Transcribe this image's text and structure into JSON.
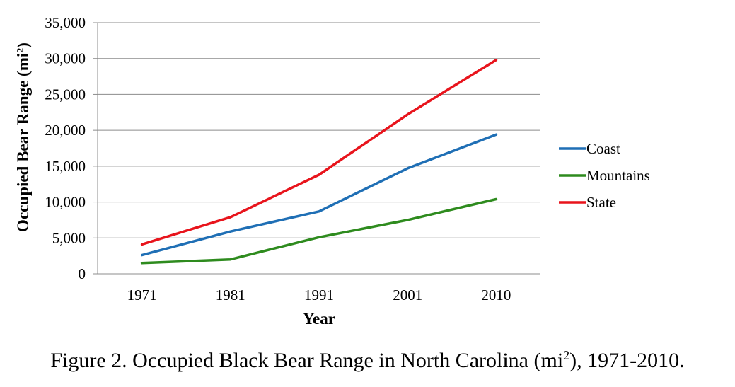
{
  "chart_data": {
    "type": "line",
    "xlabel": "Year",
    "ylabel_text": "Occupied Bear Range (mi",
    "ylabel_sup": "2",
    "ylabel_close": ")",
    "categories": [
      "1971",
      "1981",
      "1991",
      "2001",
      "2010"
    ],
    "ylim": [
      0,
      35000
    ],
    "yticks": [
      0,
      5000,
      10000,
      15000,
      20000,
      25000,
      30000,
      35000
    ],
    "ytick_labels": [
      "0",
      "5,000",
      "10,000",
      "15,000",
      "20,000",
      "25,000",
      "30,000",
      "35,000"
    ],
    "grid": true,
    "legend_position": "right",
    "series": [
      {
        "name": "Coast",
        "color": "#1f6fb5",
        "values": [
          2600,
          5900,
          8700,
          14700,
          19400
        ]
      },
      {
        "name": "Mountains",
        "color": "#2e8b1e",
        "values": [
          1500,
          2000,
          5100,
          7500,
          10400
        ]
      },
      {
        "name": "State",
        "color": "#e8141c",
        "values": [
          4100,
          7900,
          13800,
          22200,
          29800
        ]
      }
    ]
  },
  "caption": {
    "text_before": "Figure 2. Occupied Black Bear Range in North Carolina (mi",
    "sup": "2",
    "text_after": "), 1971-2010."
  }
}
